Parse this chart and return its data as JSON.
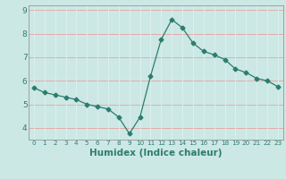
{
  "x": [
    0,
    1,
    2,
    3,
    4,
    5,
    6,
    7,
    8,
    9,
    10,
    11,
    12,
    13,
    14,
    15,
    16,
    17,
    18,
    19,
    20,
    21,
    22,
    23
  ],
  "y": [
    5.7,
    5.5,
    5.4,
    5.3,
    5.2,
    5.0,
    4.9,
    4.8,
    4.45,
    3.75,
    4.45,
    6.2,
    7.75,
    8.6,
    8.25,
    7.6,
    7.25,
    7.1,
    6.9,
    6.5,
    6.35,
    6.1,
    6.0,
    5.75
  ],
  "xlabel": "Humidex (Indice chaleur)",
  "ylim": [
    3.5,
    9.2
  ],
  "xlim": [
    -0.5,
    23.5
  ],
  "yticks": [
    4,
    5,
    6,
    7,
    8,
    9
  ],
  "xticks": [
    0,
    1,
    2,
    3,
    4,
    5,
    6,
    7,
    8,
    9,
    10,
    11,
    12,
    13,
    14,
    15,
    16,
    17,
    18,
    19,
    20,
    21,
    22,
    23
  ],
  "line_color": "#2d7d6e",
  "marker": "D",
  "marker_size": 2.5,
  "bg_color": "#cce8e5",
  "grid_color_h": "#e8a0a0",
  "grid_color_v": "#ddf0ee",
  "axis_color": "#888888",
  "label_color": "#2d7d6e",
  "xlabel_fontsize": 7.5,
  "ytick_fontsize": 6.5,
  "xtick_fontsize": 5.2
}
